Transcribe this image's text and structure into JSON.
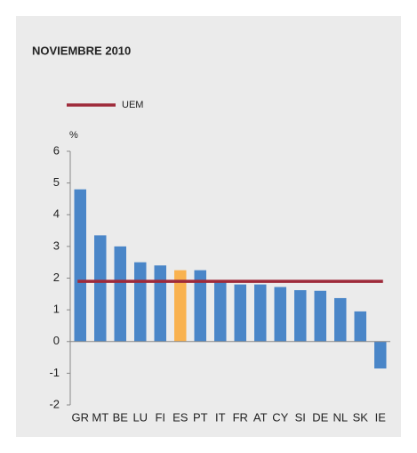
{
  "chart_data": {
    "type": "bar",
    "title": "NOVIEMBRE 2010",
    "y_label": "%",
    "categories": [
      "GR",
      "MT",
      "BE",
      "LU",
      "FI",
      "ES",
      "PT",
      "IT",
      "FR",
      "AT",
      "CY",
      "SI",
      "DE",
      "NL",
      "SK",
      "IE"
    ],
    "values": [
      4.8,
      3.35,
      3.0,
      2.5,
      2.4,
      2.25,
      2.25,
      1.9,
      1.8,
      1.8,
      1.72,
      1.62,
      1.6,
      1.37,
      0.95,
      -0.85
    ],
    "colors": [
      "#4a86c8",
      "#4a86c8",
      "#4a86c8",
      "#4a86c8",
      "#4a86c8",
      "#f9b24f",
      "#4a86c8",
      "#4a86c8",
      "#4a86c8",
      "#4a86c8",
      "#4a86c8",
      "#4a86c8",
      "#4a86c8",
      "#4a86c8",
      "#4a86c8",
      "#4a86c8"
    ],
    "reference_line": {
      "name": "UEM",
      "value": 1.9,
      "color": "#9e2a3a"
    },
    "ylim": [
      -2,
      6
    ],
    "yticks": [
      -2,
      -1,
      0,
      1,
      2,
      3,
      4,
      5,
      6
    ],
    "grid": false
  }
}
